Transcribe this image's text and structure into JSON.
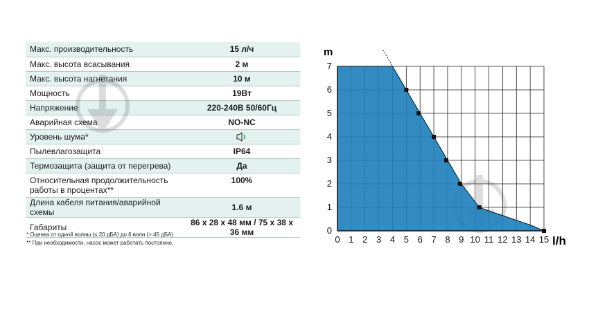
{
  "spec_table": [
    {
      "label": "Макс. производительность",
      "value": "15 л/ч"
    },
    {
      "label": "Макс. высота всасывания",
      "value": "2 м"
    },
    {
      "label": "Макс. высота нагнетания",
      "value": "10 м"
    },
    {
      "label": "Мощность",
      "value": "19Вт"
    },
    {
      "label": "Напряжение",
      "value": "220-240В 50/60Гц"
    },
    {
      "label": "Аварийная схема",
      "value": "NO-NC"
    },
    {
      "label": "Уровень шума*",
      "value": "",
      "icon": "speaker-icon"
    },
    {
      "label": "Пылевлагозащита",
      "value": "IP64"
    },
    {
      "label": "Термозащита (защита от перегрева)",
      "value": "Да"
    },
    {
      "label": "Относительная продолжительность работы в процентах**",
      "value": "100%"
    },
    {
      "label": "Длина кабеля питания/аварийной схемы",
      "value": "1.6 м"
    },
    {
      "label": "Габариты",
      "value": "86 х 28 х 48 мм / 75 х 38 х 36 мм"
    }
  ],
  "footnotes": [
    "* Оценка от одной волны (≤  20 дБА) до 6 волн (> 45 дБА)",
    "** При необходимости, насос может работать постоянно."
  ],
  "colors": {
    "row_shade": "#e3f1ef",
    "fill": "#1d7eba",
    "grid": "#222222"
  },
  "chart_data": {
    "type": "area",
    "xlabel": "l/h",
    "ylabel": "m",
    "xlim": [
      0,
      15
    ],
    "ylim": [
      0,
      7
    ],
    "xticks": [
      0,
      1,
      2,
      3,
      4,
      5,
      6,
      7,
      8,
      9,
      10,
      11,
      12,
      13,
      14,
      15
    ],
    "yticks": [
      0,
      1,
      2,
      3,
      4,
      5,
      6,
      7
    ],
    "grid": true,
    "series": [
      {
        "curve": [
          [
            0,
            7
          ],
          [
            4,
            7
          ],
          [
            5,
            6
          ],
          [
            6,
            5
          ],
          [
            7,
            4
          ],
          [
            8,
            3
          ],
          [
            9,
            2
          ],
          [
            10.3,
            1
          ],
          [
            11,
            0.85
          ],
          [
            12,
            0.65
          ],
          [
            13,
            0.45
          ],
          [
            14,
            0.25
          ],
          [
            15,
            0
          ]
        ],
        "markers": [
          [
            5,
            6
          ],
          [
            5.9,
            5
          ],
          [
            7,
            4
          ],
          [
            7.9,
            3
          ],
          [
            8.9,
            2
          ],
          [
            10.3,
            1
          ],
          [
            15,
            0
          ]
        ],
        "extension": [
          [
            3.3,
            7.7
          ],
          [
            4,
            7
          ]
        ]
      }
    ]
  }
}
